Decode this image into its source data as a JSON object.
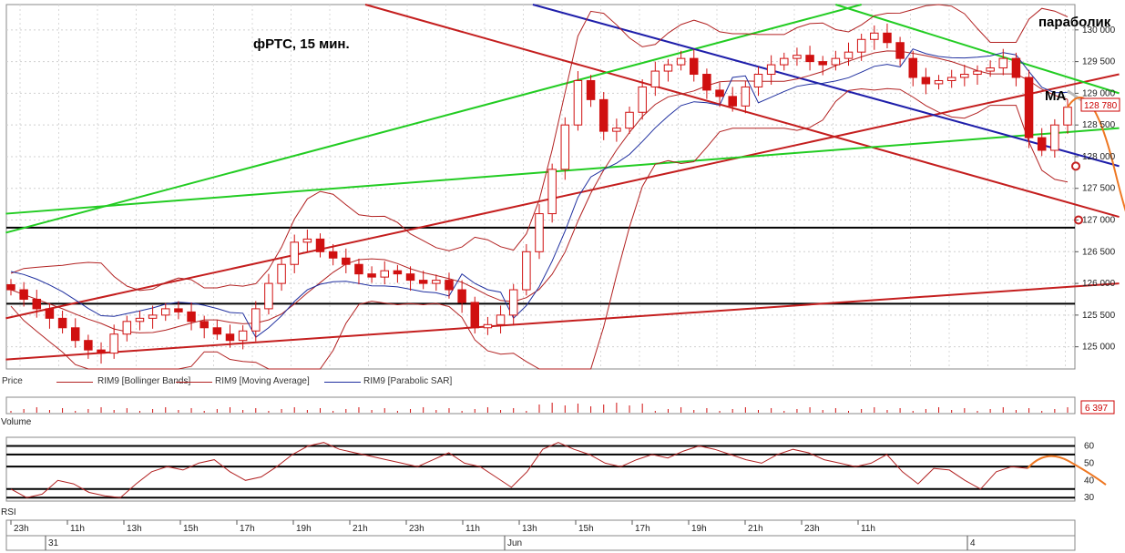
{
  "chart_data": [
    {
      "type": "candlestick",
      "pane": "price",
      "title": "фРТС,  15 мин.",
      "annotations": [
        "параболик",
        "МА"
      ],
      "ylim": [
        124650,
        130400
      ],
      "y_ticks": [
        "125 000",
        "125 500",
        "126 000",
        "126 500",
        "127 000",
        "127 500",
        "128 000",
        "128 500",
        "129 000",
        "129 500",
        "130 000"
      ],
      "last_price_label": "128 780",
      "last_price": 128780,
      "legend": [
        {
          "label": "Price",
          "color": "#cc0000"
        },
        {
          "label": "RIM9 [Bollinger Bands]",
          "color": "#b22222"
        },
        {
          "label": "RIM9 [Moving Average]",
          "color": "#b22222"
        },
        {
          "label": "RIM9 [Parabolic SAR]",
          "color": "#1f2f9f"
        }
      ],
      "close_series": [
        125900,
        125750,
        125600,
        125450,
        125300,
        125100,
        124950,
        124900,
        125200,
        125400,
        125450,
        125500,
        125600,
        125550,
        125400,
        125300,
        125200,
        125100,
        125250,
        125600,
        126000,
        126300,
        126650,
        126700,
        126500,
        126400,
        126300,
        126150,
        126100,
        126200,
        126150,
        126050,
        126000,
        126050,
        125900,
        125700,
        125300,
        125350,
        125500,
        125900,
        126500,
        127100,
        127800,
        128500,
        129200,
        128900,
        128400,
        128450,
        128700,
        129100,
        129350,
        129450,
        129550,
        129300,
        129050,
        128950,
        128800,
        129100,
        129300,
        129450,
        129550,
        129600,
        129500,
        129450,
        129550,
        129650,
        129850,
        129950,
        129800,
        129550,
        129250,
        129150,
        129200,
        129250,
        129300,
        129350,
        129400,
        129550,
        129250,
        128300,
        128100,
        128500,
        128780
      ],
      "x_tick_labels": [
        "23h",
        "11h",
        "13h",
        "15h",
        "17h",
        "19h",
        "21h",
        "23h",
        "11h",
        "13h",
        "15h",
        "17h",
        "19h",
        "21h",
        "23h",
        "11h"
      ],
      "date_labels": [
        "31",
        "Jun",
        "4"
      ],
      "colors": {
        "up": "#ffffff",
        "down": "#d01010",
        "bollinger": "#b22222",
        "sar": "#1f2f9f",
        "trend_red": "#c41e1e",
        "trend_green": "#22cc22",
        "trend_blue": "#1e1eaa",
        "forecast": "#ee7722",
        "hline": "#000000"
      }
    },
    {
      "type": "bar",
      "pane": "volume",
      "label": "Volume",
      "last_value_label": "6 397",
      "last_value": 6397
    },
    {
      "type": "line",
      "pane": "rsi",
      "label": "RSI",
      "ylim": [
        28,
        65
      ],
      "y_ticks": [
        "30",
        "40",
        "50",
        "60"
      ],
      "levels": [
        60,
        55,
        48,
        35,
        30
      ],
      "values": [
        35,
        30,
        32,
        40,
        38,
        33,
        31,
        30,
        38,
        45,
        48,
        46,
        50,
        52,
        45,
        40,
        42,
        48,
        55,
        60,
        62,
        58,
        56,
        54,
        52,
        50,
        48,
        52,
        56,
        50,
        48,
        42,
        36,
        45,
        58,
        62,
        58,
        55,
        50,
        48,
        52,
        55,
        53,
        57,
        60,
        58,
        55,
        52,
        50,
        55,
        58,
        56,
        52,
        50,
        48,
        50,
        55,
        45,
        38,
        47,
        46,
        40,
        35,
        45,
        48,
        47
      ],
      "forecast_color": "#ee7722"
    }
  ]
}
